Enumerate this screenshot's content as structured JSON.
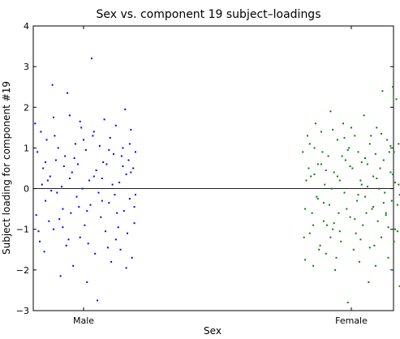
{
  "chart_data": {
    "type": "scatter",
    "title": "Sex vs. component 19 subject–loadings",
    "xlabel": "Sex",
    "ylabel": "Subject loading for component #19",
    "categories": [
      "Male",
      "Female"
    ],
    "ylim": [
      -3,
      4
    ],
    "yticks": [
      "−3",
      "−2",
      "−1",
      "0",
      "1",
      "2",
      "3",
      "4"
    ],
    "zero_line": true,
    "grid": false,
    "series": [
      {
        "category": "Male",
        "color": "#0000ff",
        "points": [
          [
            -0.42,
            1.6
          ],
          [
            -0.4,
            0.9
          ],
          [
            -0.38,
            -1.3
          ],
          [
            -0.36,
            0.1
          ],
          [
            -0.35,
            0.5
          ],
          [
            -0.33,
            -0.3
          ],
          [
            -0.32,
            1.2
          ],
          [
            -0.3,
            -0.8
          ],
          [
            -0.29,
            0.3
          ],
          [
            -0.27,
            2.55
          ],
          [
            -0.26,
            -1.0
          ],
          [
            -0.24,
            0.7
          ],
          [
            -0.23,
            -0.1
          ],
          [
            -0.22,
            1.0
          ],
          [
            -0.2,
            -2.15
          ],
          [
            -0.19,
            0.05
          ],
          [
            -0.18,
            -0.5
          ],
          [
            -0.16,
            0.8
          ],
          [
            -0.15,
            -1.4
          ],
          [
            -0.14,
            2.35
          ],
          [
            -0.12,
            1.8
          ],
          [
            -0.11,
            -0.6
          ],
          [
            -0.1,
            0.4
          ],
          [
            -0.09,
            -1.9
          ],
          [
            -0.07,
            1.1
          ],
          [
            -0.06,
            -0.2
          ],
          [
            -0.05,
            0.6
          ],
          [
            -0.03,
            -1.2
          ],
          [
            -0.02,
            1.5
          ],
          [
            -0.01,
            0.0
          ],
          [
            0.01,
            -0.9
          ],
          [
            0.02,
            0.95
          ],
          [
            0.03,
            -2.3
          ],
          [
            0.05,
            0.2
          ],
          [
            0.06,
            -0.4
          ],
          [
            0.07,
            3.2
          ],
          [
            0.08,
            1.3
          ],
          [
            0.1,
            -1.6
          ],
          [
            0.11,
            0.45
          ],
          [
            0.12,
            -2.75
          ],
          [
            0.14,
            1.05
          ],
          [
            0.15,
            -0.7
          ],
          [
            0.16,
            0.25
          ],
          [
            0.18,
            1.7
          ],
          [
            0.19,
            -1.05
          ],
          [
            0.2,
            0.6
          ],
          [
            0.22,
            -0.35
          ],
          [
            0.23,
            1.25
          ],
          [
            0.24,
            -1.8
          ],
          [
            0.26,
            0.85
          ],
          [
            0.27,
            -0.15
          ],
          [
            0.28,
            1.55
          ],
          [
            0.3,
            -0.95
          ],
          [
            0.31,
            0.15
          ],
          [
            0.32,
            -1.5
          ],
          [
            0.34,
            1.0
          ],
          [
            0.35,
            -0.55
          ],
          [
            0.36,
            1.95
          ],
          [
            0.37,
            0.35
          ],
          [
            0.38,
            -1.1
          ],
          [
            0.39,
            0.7
          ],
          [
            0.4,
            -0.25
          ],
          [
            0.41,
            1.45
          ],
          [
            0.42,
            -1.7
          ],
          [
            0.43,
            0.5
          ],
          [
            0.44,
            -0.45
          ],
          [
            0.45,
            0.9
          ],
          [
            -0.41,
            -0.65
          ],
          [
            -0.37,
            1.4
          ],
          [
            -0.34,
            -1.55
          ],
          [
            -0.31,
            0.2
          ],
          [
            -0.28,
            -0.05
          ],
          [
            -0.25,
            1.3
          ],
          [
            -0.21,
            -0.75
          ],
          [
            -0.17,
            0.55
          ],
          [
            -0.13,
            -1.25
          ],
          [
            -0.08,
            0.75
          ],
          [
            -0.04,
            -0.45
          ],
          [
            0.0,
            1.2
          ],
          [
            0.04,
            -1.35
          ],
          [
            0.09,
            0.3
          ],
          [
            0.13,
            -0.1
          ],
          [
            0.17,
            0.65
          ],
          [
            0.21,
            -1.45
          ],
          [
            0.25,
            0.1
          ],
          [
            0.29,
            -0.6
          ],
          [
            0.33,
            0.8
          ],
          [
            0.37,
            -1.95
          ],
          [
            0.41,
            0.4
          ],
          [
            0.44,
            -0.85
          ],
          [
            -0.39,
            -1.05
          ],
          [
            -0.33,
            0.65
          ],
          [
            -0.26,
            1.75
          ],
          [
            -0.18,
            -0.95
          ],
          [
            -0.12,
            0.25
          ],
          [
            -0.03,
            1.65
          ],
          [
            0.03,
            -0.55
          ],
          [
            0.09,
            1.4
          ],
          [
            0.16,
            -0.3
          ],
          [
            0.22,
            0.95
          ],
          [
            0.28,
            -1.25
          ],
          [
            0.34,
            0.55
          ],
          [
            0.4,
            1.1
          ],
          [
            0.45,
            -0.15
          ]
        ]
      },
      {
        "category": "Female",
        "color": "#008000",
        "points": [
          [
            -0.42,
            0.9
          ],
          [
            -0.4,
            -0.5
          ],
          [
            -0.38,
            1.3
          ],
          [
            -0.36,
            -1.1
          ],
          [
            -0.35,
            0.3
          ],
          [
            -0.33,
            -1.9
          ],
          [
            -0.32,
            1.0
          ],
          [
            -0.3,
            -0.2
          ],
          [
            -0.29,
            0.6
          ],
          [
            -0.27,
            -1.4
          ],
          [
            -0.26,
            1.4
          ],
          [
            -0.24,
            -0.8
          ],
          [
            -0.23,
            0.1
          ],
          [
            -0.22,
            -1.6
          ],
          [
            -0.2,
            0.8
          ],
          [
            -0.19,
            -0.4
          ],
          [
            -0.18,
            1.9
          ],
          [
            -0.16,
            -1.0
          ],
          [
            -0.15,
            0.4
          ],
          [
            -0.14,
            -2.0
          ],
          [
            -0.12,
            1.2
          ],
          [
            -0.11,
            -0.6
          ],
          [
            -0.1,
            0.2
          ],
          [
            -0.09,
            -1.3
          ],
          [
            -0.07,
            1.6
          ],
          [
            -0.06,
            -0.1
          ],
          [
            -0.05,
            0.7
          ],
          [
            -0.03,
            -2.8
          ],
          [
            -0.02,
            1.0
          ],
          [
            -0.01,
            -0.7
          ],
          [
            0.01,
            0.5
          ],
          [
            0.02,
            -1.5
          ],
          [
            0.03,
            1.3
          ],
          [
            0.05,
            -0.3
          ],
          [
            0.06,
            0.9
          ],
          [
            0.07,
            -1.8
          ],
          [
            0.08,
            0.2
          ],
          [
            0.1,
            -0.9
          ],
          [
            0.11,
            1.8
          ],
          [
            0.12,
            -0.2
          ],
          [
            0.14,
            0.6
          ],
          [
            0.15,
            -2.3
          ],
          [
            0.16,
            1.1
          ],
          [
            0.18,
            -0.5
          ],
          [
            0.19,
            0.3
          ],
          [
            0.2,
            -1.4
          ],
          [
            0.22,
            1.5
          ],
          [
            0.23,
            -0.8
          ],
          [
            0.24,
            0.0
          ],
          [
            0.26,
            -1.2
          ],
          [
            0.27,
            2.4
          ],
          [
            0.28,
            0.7
          ],
          [
            0.3,
            -0.6
          ],
          [
            0.31,
            1.2
          ],
          [
            0.32,
            -1.7
          ],
          [
            0.34,
            0.4
          ],
          [
            0.35,
            -0.3
          ],
          [
            0.36,
            2.5
          ],
          [
            0.37,
            0.9
          ],
          [
            0.38,
            -1.0
          ],
          [
            0.39,
            2.2
          ],
          [
            0.4,
            -0.4
          ],
          [
            0.41,
            1.1
          ],
          [
            0.42,
            -2.4
          ],
          [
            0.43,
            0.6
          ],
          [
            0.44,
            -0.9
          ],
          [
            0.45,
            0.2
          ],
          [
            -0.41,
            -1.2
          ],
          [
            -0.37,
            0.5
          ],
          [
            -0.34,
            -0.6
          ],
          [
            -0.31,
            1.6
          ],
          [
            -0.28,
            -1.5
          ],
          [
            -0.25,
            0.9
          ],
          [
            -0.21,
            -0.9
          ],
          [
            -0.17,
            0.0
          ],
          [
            -0.13,
            -1.7
          ],
          [
            -0.08,
            0.8
          ],
          [
            -0.04,
            -0.5
          ],
          [
            0.0,
            1.5
          ],
          [
            0.04,
            -1.1
          ],
          [
            0.09,
            0.1
          ],
          [
            0.13,
            -0.6
          ],
          [
            0.17,
            1.3
          ],
          [
            0.21,
            -1.9
          ],
          [
            0.25,
            0.5
          ],
          [
            0.29,
            -0.1
          ],
          [
            0.33,
            0.9
          ],
          [
            0.37,
            -1.3
          ],
          [
            0.41,
            0.1
          ],
          [
            0.44,
            1.0
          ],
          [
            -0.39,
            0.2
          ],
          [
            -0.33,
            -0.9
          ],
          [
            -0.26,
            0.6
          ],
          [
            -0.18,
            -1.2
          ],
          [
            -0.12,
            0.3
          ],
          [
            -0.03,
            0.95
          ],
          [
            0.03,
            -0.75
          ],
          [
            0.09,
            0.65
          ],
          [
            0.16,
            -1.45
          ],
          [
            0.22,
            0.25
          ],
          [
            0.28,
            -0.35
          ],
          [
            0.34,
            1.05
          ],
          [
            0.4,
            -1.05
          ],
          [
            0.45,
            0.45
          ],
          [
            -0.36,
            1.1
          ],
          [
            -0.29,
            -0.25
          ],
          [
            -0.22,
            0.45
          ],
          [
            -0.15,
            -0.85
          ],
          [
            -0.06,
            1.25
          ],
          [
            0.06,
            -0.15
          ],
          [
            0.12,
            0.75
          ],
          [
            0.19,
            -0.45
          ],
          [
            0.26,
            1.35
          ],
          [
            0.32,
            -0.95
          ],
          [
            0.38,
            0.15
          ],
          [
            0.43,
            -1.55
          ],
          [
            -0.4,
            -1.75
          ],
          [
            -0.32,
            0.35
          ],
          [
            -0.24,
            -0.35
          ],
          [
            -0.16,
            1.45
          ],
          [
            -0.1,
            -1.05
          ],
          [
            -0.01,
            0.55
          ],
          [
            0.08,
            -1.25
          ],
          [
            0.14,
            0.05
          ],
          [
            0.21,
            0.85
          ],
          [
            0.3,
            -0.65
          ],
          [
            0.36,
            0.35
          ],
          [
            0.42,
            -0.15
          ]
        ]
      }
    ]
  }
}
